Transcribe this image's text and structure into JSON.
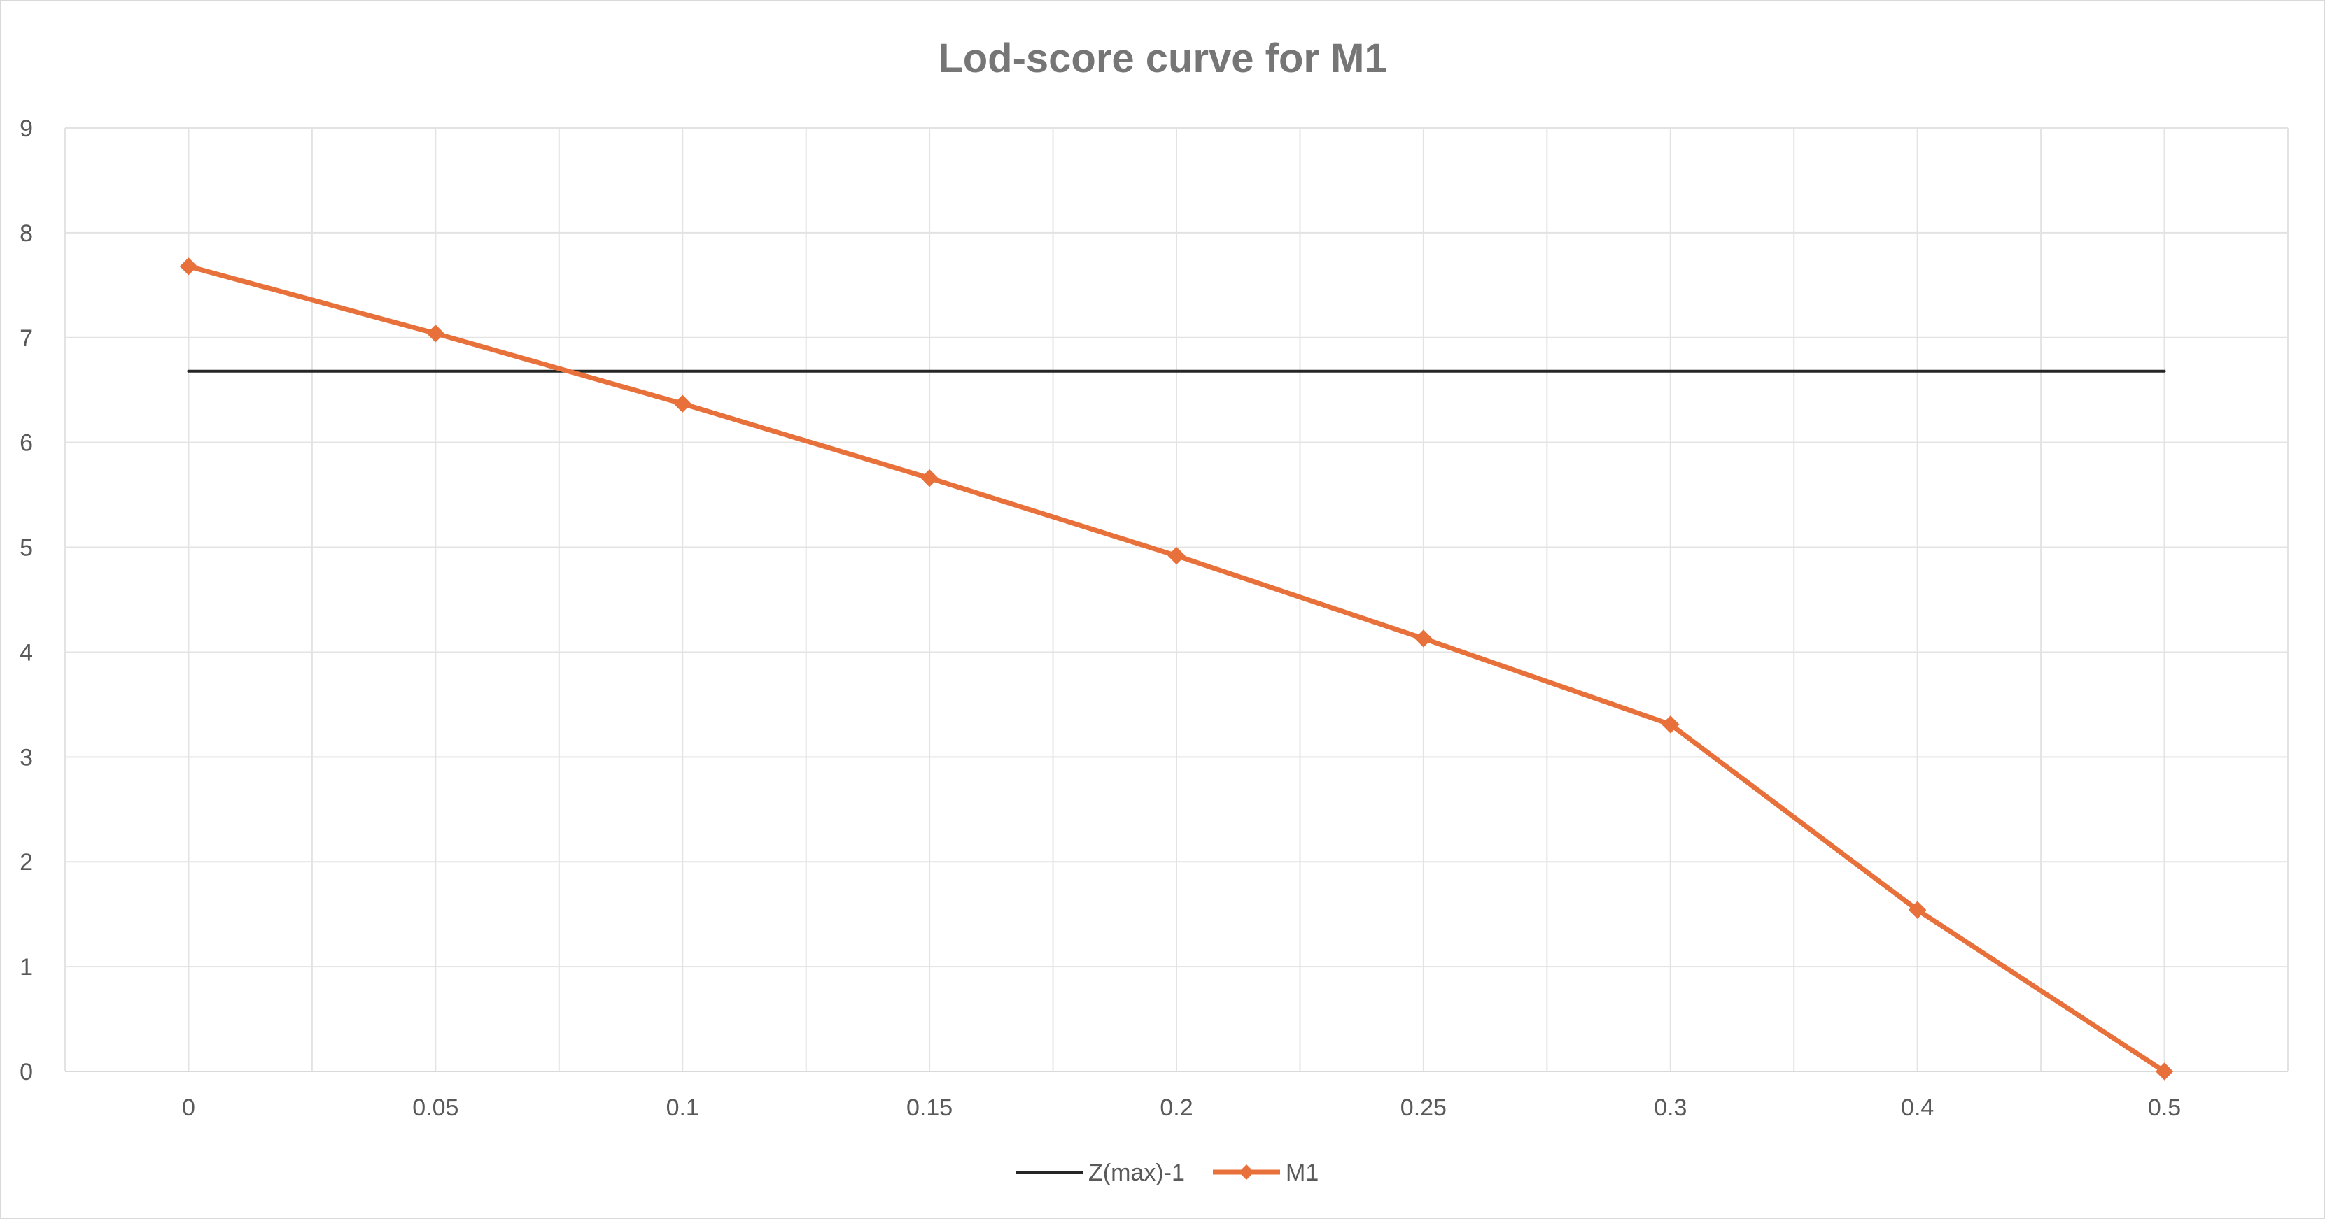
{
  "chart_data": {
    "type": "line",
    "title": "Lod-score curve for M1",
    "xlabel": "",
    "ylabel": "",
    "categories": [
      "0",
      "0.05",
      "0.1",
      "0.15",
      "0.2",
      "0.25",
      "0.3",
      "0.4",
      "0.5"
    ],
    "ylim": [
      0,
      9
    ],
    "yticks": [
      "0",
      "1",
      "2",
      "3",
      "4",
      "5",
      "6",
      "7",
      "8",
      "9"
    ],
    "grid": true,
    "legend_position": "bottom",
    "series": [
      {
        "name": "Z(max)-1",
        "color": "#262626",
        "marker": "none",
        "values": [
          6.68,
          6.68,
          6.68,
          6.68,
          6.68,
          6.68,
          6.68,
          6.68,
          6.68
        ]
      },
      {
        "name": "M1",
        "color": "#E8703A",
        "marker": "diamond",
        "values": [
          7.68,
          7.04,
          6.37,
          5.66,
          4.92,
          4.13,
          3.31,
          1.54,
          0.0
        ]
      }
    ]
  }
}
